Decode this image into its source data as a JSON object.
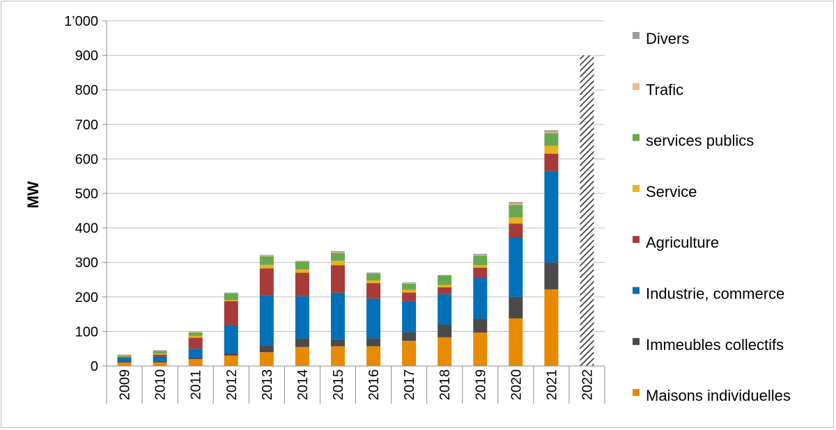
{
  "chart_data": {
    "type": "bar",
    "stacked": true,
    "title": "",
    "xlabel": "",
    "ylabel": "MW",
    "ylim": [
      0,
      1000
    ],
    "y_ticks": [
      "0",
      "100",
      "200",
      "300",
      "400",
      "500",
      "600",
      "700",
      "800",
      "900",
      "1’000"
    ],
    "grid": true,
    "legend_position": "right",
    "categories": [
      "2009",
      "2010",
      "2011",
      "2012",
      "2013",
      "2014",
      "2015",
      "2016",
      "2017",
      "2018",
      "2019",
      "2020",
      "2021",
      "2022"
    ],
    "series": [
      {
        "name": "Maisons individuelles",
        "color": "#e88a00",
        "values": [
          10,
          10,
          20,
          30,
          40,
          55,
          57,
          57,
          73,
          83,
          97,
          138,
          222,
          null
        ]
      },
      {
        "name": "Immeubles collectifs",
        "color": "#4a4a4a",
        "values": [
          3,
          2,
          5,
          8,
          20,
          25,
          20,
          23,
          25,
          37,
          40,
          62,
          78,
          null
        ]
      },
      {
        "name": "Industrie, commerce",
        "color": "#0070b8",
        "values": [
          10,
          15,
          25,
          80,
          145,
          122,
          135,
          115,
          90,
          88,
          118,
          173,
          265,
          null
        ]
      },
      {
        "name": "Agriculture",
        "color": "#a83a3a",
        "values": [
          3,
          6,
          32,
          70,
          78,
          68,
          80,
          45,
          25,
          20,
          30,
          40,
          50,
          null
        ]
      },
      {
        "name": "Service",
        "color": "#e6b31e",
        "values": [
          1,
          3,
          5,
          3,
          10,
          10,
          13,
          8,
          8,
          7,
          7,
          17,
          23,
          null
        ]
      },
      {
        "name": "services publics",
        "color": "#6aa84f",
        "values": [
          4,
          8,
          10,
          20,
          25,
          23,
          23,
          20,
          17,
          27,
          28,
          37,
          37,
          null
        ]
      },
      {
        "name": "Trafic",
        "color": "#f6b88a",
        "values": [
          1,
          1,
          2,
          1,
          2,
          1,
          2,
          1,
          2,
          1,
          2,
          3,
          3,
          null
        ]
      },
      {
        "name": "Divers",
        "color": "#9b9b9b",
        "values": [
          1,
          1,
          1,
          1,
          2,
          1,
          3,
          2,
          2,
          1,
          3,
          5,
          5,
          null
        ]
      }
    ],
    "placeholder": {
      "category": "2022",
      "value": 900,
      "pattern": "diagonal-hatch"
    }
  }
}
